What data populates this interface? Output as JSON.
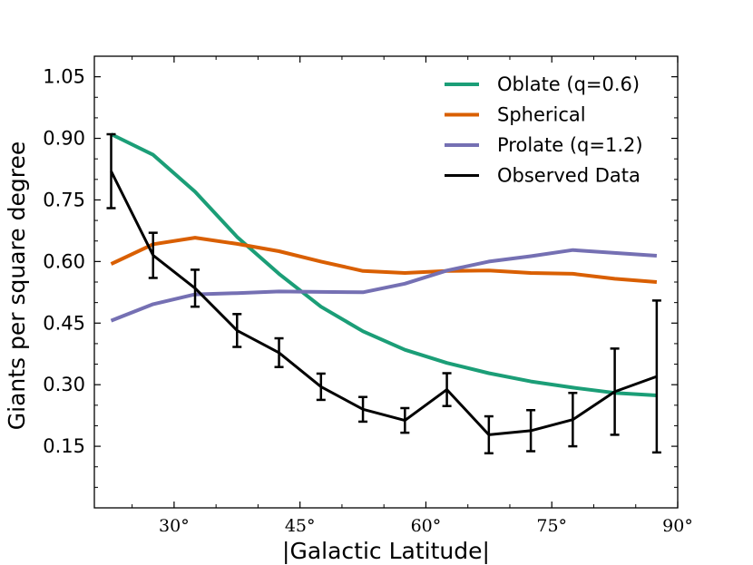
{
  "chart_data": {
    "type": "line",
    "title": "",
    "xlabel": "|Galactic Latitude|",
    "ylabel": "Giants per square degree",
    "xlim": [
      20.5,
      90
    ],
    "ylim": [
      0.0,
      1.1
    ],
    "xticks": [
      30,
      45,
      60,
      75,
      90
    ],
    "xtick_labels": [
      "30°",
      "45°",
      "60°",
      "75°",
      "90°"
    ],
    "yticks": [
      0.15,
      0.3,
      0.45,
      0.6,
      0.75,
      0.9,
      1.05
    ],
    "ytick_labels": [
      "0.15",
      "0.30",
      "0.45",
      "0.60",
      "0.75",
      "0.90",
      "1.05"
    ],
    "grid": false,
    "legend_position": "top-right",
    "x": [
      22.5,
      27.5,
      32.5,
      37.5,
      42.5,
      47.5,
      52.5,
      57.5,
      62.5,
      67.5,
      72.5,
      77.5,
      82.5,
      87.5
    ],
    "series": [
      {
        "name": "Oblate (q=0.6)",
        "color": "#1b9e77",
        "values": [
          0.91,
          0.86,
          0.77,
          0.66,
          0.57,
          0.49,
          0.43,
          0.385,
          0.353,
          0.328,
          0.308,
          0.293,
          0.28,
          0.274
        ]
      },
      {
        "name": "Spherical",
        "color": "#d95f02",
        "values": [
          0.594,
          0.642,
          0.658,
          0.643,
          0.625,
          0.6,
          0.577,
          0.572,
          0.577,
          0.578,
          0.572,
          0.57,
          0.558,
          0.55
        ]
      },
      {
        "name": "Prolate (q=1.2)",
        "color": "#7570b3",
        "values": [
          0.456,
          0.496,
          0.52,
          0.523,
          0.527,
          0.526,
          0.525,
          0.546,
          0.578,
          0.6,
          0.613,
          0.628,
          0.621,
          0.614
        ]
      },
      {
        "name": "Observed Data",
        "color": "#000000",
        "values": [
          0.82,
          0.615,
          0.535,
          0.432,
          0.378,
          0.295,
          0.24,
          0.213,
          0.288,
          0.178,
          0.188,
          0.215,
          0.283,
          0.32
        ],
        "errors": [
          0.09,
          0.055,
          0.045,
          0.04,
          0.035,
          0.032,
          0.03,
          0.03,
          0.04,
          0.045,
          0.05,
          0.065,
          0.105,
          0.185
        ]
      }
    ]
  }
}
